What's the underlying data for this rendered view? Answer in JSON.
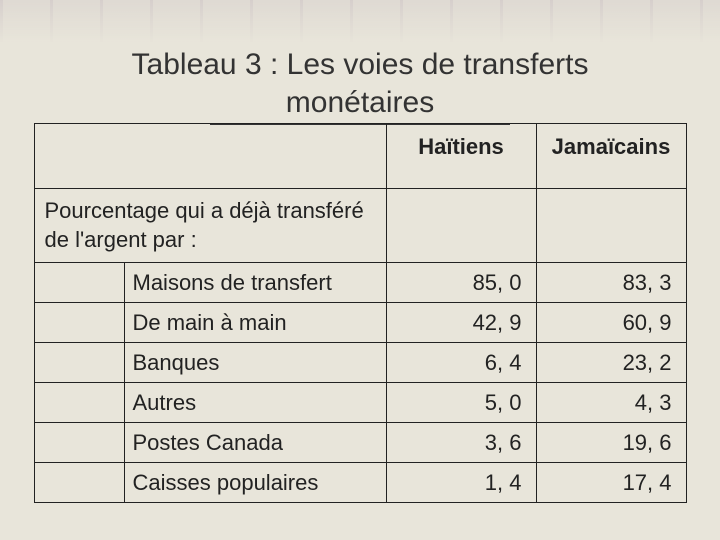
{
  "title_line1": "Tableau 3 : Les voies de transferts",
  "title_line2": "monétaires",
  "table": {
    "headers": {
      "blank": "",
      "col1": "Haïtiens",
      "col2": "Jamaïcains"
    },
    "section_label": "Pourcentage qui a déjà transféré de l'argent par :",
    "rows": [
      {
        "label": "Maisons de transfert",
        "v1": "85, 0",
        "v2": "83, 3"
      },
      {
        "label": "De main à main",
        "v1": "42, 9",
        "v2": "60, 9"
      },
      {
        "label": "Banques",
        "v1": "6, 4",
        "v2": "23, 2"
      },
      {
        "label": "Autres",
        "v1": "5, 0",
        "v2": "4, 3"
      },
      {
        "label": "Postes Canada",
        "v1": "3, 6",
        "v2": "19, 6"
      },
      {
        "label": "Caisses populaires",
        "v1": "1, 4",
        "v2": "17, 4"
      }
    ]
  },
  "colors": {
    "background": "#e8e5da",
    "text": "#222222",
    "border": "#222222"
  }
}
